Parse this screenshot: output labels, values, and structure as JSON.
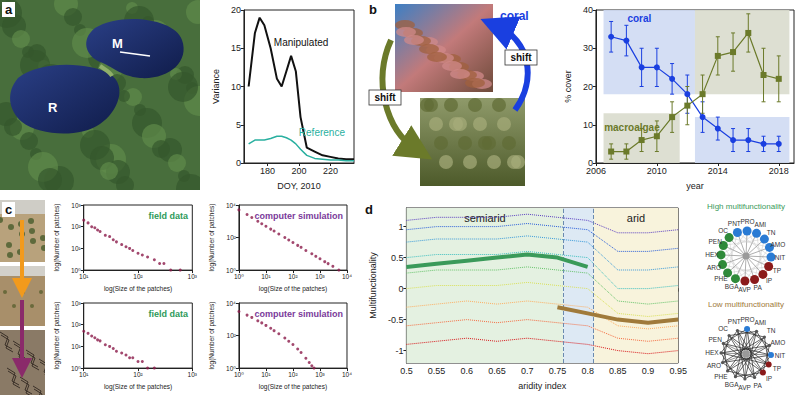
{
  "panel_labels": [
    "a",
    "b",
    "c",
    "d"
  ],
  "photos": {
    "lake": {
      "labels": [
        "M",
        "R"
      ]
    },
    "reef": {
      "labels": [
        "coral"
      ],
      "arrow_labels": [
        "shift",
        "shift"
      ],
      "colors": [
        "#1a3fe0",
        "#6b7a2a"
      ]
    }
  },
  "chart_data": [
    {
      "type": "line",
      "xlabel": "DOY, 2010",
      "ylabel": "Variance",
      "grid": false,
      "xlim": [
        165,
        235
      ],
      "xticks": [
        180,
        200,
        220
      ],
      "ylim": [
        0,
        20
      ],
      "yticks": [
        0,
        5,
        10,
        15,
        20
      ],
      "x": [
        168,
        172,
        175,
        178,
        182,
        186,
        189,
        192,
        195,
        198,
        201,
        205,
        210,
        215,
        220,
        225,
        230,
        235
      ],
      "series": [
        {
          "name": "Manipulated",
          "color": "#111111",
          "values": [
            10,
            17,
            19,
            18,
            15,
            11,
            10,
            12,
            14,
            12,
            6,
            2,
            1.5,
            1,
            0.8,
            0.6,
            0.5,
            0.5
          ]
        },
        {
          "name": "Reference",
          "color": "#2ab0a0",
          "values": [
            2.5,
            3,
            3,
            3,
            3.2,
            3.5,
            3.5,
            3.3,
            3,
            2.5,
            1.8,
            1,
            0.6,
            0.5,
            0.4,
            0.4,
            0.3,
            0.3
          ]
        }
      ]
    },
    {
      "type": "line",
      "xlabel": "year",
      "ylabel": "% cover",
      "grid": false,
      "xlim": [
        2006,
        2019
      ],
      "xticks": [
        2006,
        2010,
        2014,
        2018
      ],
      "ylim": [
        0,
        40
      ],
      "yticks": [
        0,
        10,
        20,
        30,
        40
      ],
      "x": [
        2007,
        2008,
        2009,
        2010,
        2011,
        2012,
        2013,
        2014,
        2015,
        2016,
        2017,
        2018
      ],
      "bands": [
        {
          "x": [
            2006.5,
            2012.5
          ],
          "y": [
            18,
            40
          ],
          "color": "#cfdaf3"
        },
        {
          "x": [
            2012.5,
            2018.7
          ],
          "y": [
            0,
            12
          ],
          "color": "#cfdaf3"
        },
        {
          "x": [
            2006.5,
            2011.5
          ],
          "y": [
            0,
            13
          ],
          "color": "#d9dccd"
        },
        {
          "x": [
            2012.5,
            2018.7
          ],
          "y": [
            18,
            40
          ],
          "color": "#d9dccd"
        }
      ],
      "series": [
        {
          "name": "coral",
          "color": "#1a3fe0",
          "marker": "circle",
          "values": [
            33,
            32,
            25,
            25,
            22,
            18,
            12,
            9,
            6,
            6,
            5,
            5
          ],
          "errors": [
            4,
            4,
            5,
            5,
            4,
            5,
            4,
            3,
            3,
            3,
            2,
            2
          ]
        },
        {
          "name": "macroalgae",
          "color": "#6b7a2a",
          "marker": "square",
          "values": [
            3,
            3,
            6,
            7,
            12,
            15,
            18,
            28,
            29,
            34,
            23,
            22
          ],
          "errors": [
            2,
            2,
            3,
            4,
            4,
            5,
            5,
            5,
            5,
            5,
            7,
            6
          ]
        }
      ]
    },
    {
      "type": "scatter",
      "title": "field data",
      "xlabel": "log(Size of the patches)",
      "ylabel": "log(Number of patches)",
      "log": true,
      "grid": false,
      "color": "#8b1a4a",
      "xlim": [
        10,
        1000
      ],
      "xticks": [
        {
          "value": 10,
          "label": "10¹"
        },
        {
          "value": 100,
          "label": "10²"
        },
        {
          "value": 1000,
          "label": "10³"
        }
      ],
      "ylim": [
        1,
        1000
      ],
      "yticks": [
        {
          "value": 1,
          "label": "10⁰"
        },
        {
          "value": 10,
          "label": "10¹"
        },
        {
          "value": 100,
          "label": "10²"
        },
        {
          "value": 1000,
          "label": "10³"
        }
      ],
      "x": [
        10,
        12,
        14,
        16,
        18,
        20,
        25,
        30,
        35,
        40,
        50,
        60,
        70,
        80,
        100,
        120,
        150,
        200,
        250,
        300,
        400,
        600
      ],
      "values": [
        200,
        150,
        100,
        90,
        70,
        60,
        40,
        35,
        25,
        20,
        15,
        12,
        10,
        8,
        6,
        5,
        4,
        3,
        2,
        2,
        1,
        1
      ]
    },
    {
      "type": "scatter",
      "title": "computer simulation",
      "xlabel": "log(Size of the patches)",
      "ylabel": "log(Number of patches)",
      "log": true,
      "grid": false,
      "color": "#8b1a4a",
      "xlim": [
        1,
        10000
      ],
      "xticks": [
        {
          "value": 1,
          "label": "10⁰"
        },
        {
          "value": 10,
          "label": "10¹"
        },
        {
          "value": 100,
          "label": "10²"
        },
        {
          "value": 1000,
          "label": "10³"
        },
        {
          "value": 10000,
          "label": "10⁴"
        }
      ],
      "ylim": [
        1,
        10000
      ],
      "yticks": [
        {
          "value": 1,
          "label": "10⁰"
        },
        {
          "value": 100,
          "label": "10²"
        },
        {
          "value": 10000,
          "label": "10⁴"
        }
      ],
      "x": [
        1,
        2,
        3,
        5,
        7,
        10,
        15,
        20,
        30,
        50,
        70,
        100,
        150,
        200,
        300,
        500,
        700,
        1000,
        1500,
        2000,
        3000,
        5000
      ],
      "values": [
        5000,
        2600,
        1700,
        1000,
        700,
        500,
        330,
        250,
        165,
        100,
        70,
        50,
        33,
        25,
        16,
        10,
        7,
        5,
        3.3,
        2.5,
        1.7,
        1
      ]
    },
    {
      "type": "scatter",
      "title": "field data",
      "xlabel": "log(Size of the patches)",
      "ylabel": "log(Number of patches)",
      "log": true,
      "grid": false,
      "color": "#8b1a4a",
      "xlim": [
        10,
        1000
      ],
      "xticks": [
        {
          "value": 10,
          "label": "10¹"
        },
        {
          "value": 100,
          "label": "10²"
        },
        {
          "value": 1000,
          "label": "10³"
        }
      ],
      "ylim": [
        1,
        1000
      ],
      "yticks": [
        {
          "value": 1,
          "label": "10⁰"
        },
        {
          "value": 10,
          "label": "10¹"
        },
        {
          "value": 100,
          "label": "10²"
        },
        {
          "value": 1000,
          "label": "10³"
        }
      ],
      "x": [
        10,
        12,
        14,
        16,
        18,
        20,
        25,
        30,
        35,
        40,
        50,
        60,
        70,
        80,
        100,
        120,
        150,
        200
      ],
      "values": [
        50,
        40,
        30,
        25,
        20,
        18,
        12,
        10,
        8,
        6,
        5,
        4,
        3,
        3,
        2,
        2,
        1,
        1
      ]
    },
    {
      "type": "scatter",
      "title": "computer simulation",
      "xlabel": "log(Size of the patches)",
      "ylabel": "log(Number of patches)",
      "log": true,
      "grid": false,
      "color": "#8b1a4a",
      "xlim": [
        1,
        10000
      ],
      "xticks": [
        {
          "value": 1,
          "label": "10⁰"
        },
        {
          "value": 10,
          "label": "10¹"
        },
        {
          "value": 100,
          "label": "10²"
        },
        {
          "value": 1000,
          "label": "10³"
        },
        {
          "value": 10000,
          "label": "10⁴"
        }
      ],
      "ylim": [
        1,
        10000
      ],
      "yticks": [
        {
          "value": 1,
          "label": "10⁰"
        },
        {
          "value": 100,
          "label": "10²"
        },
        {
          "value": 10000,
          "label": "10⁴"
        }
      ],
      "x": [
        1,
        2,
        3,
        5,
        7,
        10,
        15,
        20,
        30,
        50,
        70,
        100,
        150,
        200,
        300,
        400,
        500,
        600
      ],
      "values": [
        3000,
        1800,
        1300,
        800,
        600,
        420,
        280,
        200,
        130,
        70,
        45,
        28,
        15,
        9,
        4,
        2.2,
        1.4,
        1
      ]
    },
    {
      "type": "line",
      "xlabel": "aridity index",
      "ylabel": "Multifunctionality",
      "grid": false,
      "xlim": [
        0.5,
        0.95
      ],
      "xticks": [
        0.5,
        0.55,
        0.6,
        0.65,
        0.7,
        0.75,
        0.8,
        0.85,
        0.9,
        0.95
      ],
      "ylim": [
        -1.2,
        1.3
      ],
      "yticks": [
        -1,
        -0.5,
        0,
        0.5,
        1
      ],
      "thresholds": [
        0.76,
        0.81
      ],
      "regions": [
        {
          "label": "semiarid",
          "from": 0.5,
          "to": 0.76,
          "color": "#e4f1e1"
        },
        {
          "from": 0.76,
          "to": 0.81,
          "color": "#dde9f4"
        },
        {
          "label": "arid",
          "from": 0.81,
          "to": 0.95,
          "color": "#f8f3dc"
        }
      ],
      "x": [
        0.5,
        0.55,
        0.6,
        0.65,
        0.7,
        0.75,
        0.8,
        0.85,
        0.9,
        0.95
      ],
      "series": [
        {
          "color": "#d7191c",
          "line_style": "dotted",
          "values": [
            -0.9,
            -0.85,
            -0.8,
            -0.85,
            -0.8,
            -0.85,
            -0.9,
            -1.0,
            -1.05,
            -1.0
          ]
        },
        {
          "color": "#f46d43",
          "line_style": "dotted",
          "values": [
            -0.6,
            -0.55,
            -0.5,
            -0.55,
            -0.5,
            -0.55,
            -0.6,
            -0.8,
            -0.85,
            -0.8
          ]
        },
        {
          "color": "#fdae61",
          "line_style": "dotted",
          "values": [
            -0.3,
            -0.25,
            -0.2,
            -0.25,
            -0.2,
            -0.25,
            -0.3,
            -0.6,
            -0.65,
            -0.6
          ]
        },
        {
          "color": "#d9e05a",
          "line_style": "dotted",
          "values": [
            0.0,
            0.05,
            0.05,
            0.05,
            0.1,
            0.05,
            0.0,
            -0.4,
            -0.45,
            -0.4
          ]
        },
        {
          "color": "#66c26a",
          "line_style": "dotted",
          "values": [
            0.25,
            0.3,
            0.3,
            0.3,
            0.35,
            0.3,
            0.25,
            -0.2,
            -0.25,
            -0.2
          ]
        },
        {
          "color": "#3fbfbf",
          "line_style": "dotted",
          "values": [
            0.5,
            0.55,
            0.55,
            0.55,
            0.6,
            0.55,
            0.5,
            0.0,
            0.0,
            0.05
          ]
        },
        {
          "color": "#3a9ad9",
          "line_style": "dotted",
          "values": [
            0.75,
            0.8,
            0.8,
            0.8,
            0.85,
            0.8,
            0.75,
            0.3,
            0.3,
            0.35
          ]
        },
        {
          "color": "#2b5fd9",
          "line_style": "dotted",
          "values": [
            0.95,
            1.0,
            1.0,
            1.0,
            1.05,
            1.0,
            0.95,
            0.6,
            0.6,
            0.65
          ]
        },
        {
          "color": "#5a3fc0",
          "line_style": "dotted",
          "values": [
            1.1,
            1.15,
            1.15,
            1.15,
            1.2,
            1.15,
            1.1,
            0.9,
            0.9,
            0.95
          ]
        },
        {
          "color": "#3a9a5a",
          "line_style": "solid",
          "x": [
            0.5,
            0.55,
            0.6,
            0.65,
            0.7,
            0.75,
            0.8
          ],
          "values": [
            0.35,
            0.4,
            0.45,
            0.5,
            0.55,
            0.5,
            0.35
          ]
        },
        {
          "color": "#a07a3a",
          "line_style": "solid",
          "x": [
            0.75,
            0.8,
            0.85,
            0.9,
            0.95
          ],
          "values": [
            -0.3,
            -0.4,
            -0.5,
            -0.55,
            -0.5
          ]
        }
      ]
    }
  ],
  "networks": [
    {
      "title": "High multifunctionality",
      "nodes": [
        {
          "label": "PNT",
          "color": "#2a7bd4"
        },
        {
          "label": "PRO",
          "color": "#2a7bd4"
        },
        {
          "label": "AMI",
          "color": "#2a7bd4"
        },
        {
          "label": "TN",
          "color": "#2a7bd4"
        },
        {
          "label": "AMO",
          "color": "#2a7bd4"
        },
        {
          "label": "NIT",
          "color": "#2a7bd4"
        },
        {
          "label": "TP",
          "color": "#8b1a1a"
        },
        {
          "label": "IP",
          "color": "#8b1a1a"
        },
        {
          "label": "PA",
          "color": "#8b1a1a"
        },
        {
          "label": "AVP",
          "color": "#8b1a1a"
        },
        {
          "label": "BGA",
          "color": "#2f8a3a"
        },
        {
          "label": "PHE",
          "color": "#2f8a3a"
        },
        {
          "label": "ARO",
          "color": "#2f8a3a"
        },
        {
          "label": "HEX",
          "color": "#2f8a3a"
        },
        {
          "label": "PEN",
          "color": "#2f8a3a"
        },
        {
          "label": "OC",
          "color": "#2f8a3a"
        }
      ]
    },
    {
      "title": "Low multifunctionality",
      "nodes": [
        {
          "label": "PNT",
          "color": "#555555"
        },
        {
          "label": "PRO",
          "color": "#2a7bd4"
        },
        {
          "label": "AMI",
          "color": "#555555"
        },
        {
          "label": "TN",
          "color": "#555555"
        },
        {
          "label": "AMO",
          "color": "#555555"
        },
        {
          "label": "NIT",
          "color": "#2a7bd4"
        },
        {
          "label": "TP",
          "color": "#8b1a1a"
        },
        {
          "label": "IP",
          "color": "#8b1a1a"
        },
        {
          "label": "PA",
          "color": "#555555"
        },
        {
          "label": "AVP",
          "color": "#555555"
        },
        {
          "label": "BGA",
          "color": "#555555"
        },
        {
          "label": "PHE",
          "color": "#555555"
        },
        {
          "label": "ARO",
          "color": "#555555"
        },
        {
          "label": "HEX",
          "color": "#555555"
        },
        {
          "label": "PEN",
          "color": "#555555"
        },
        {
          "label": "OC",
          "color": "#555555"
        }
      ]
    }
  ]
}
